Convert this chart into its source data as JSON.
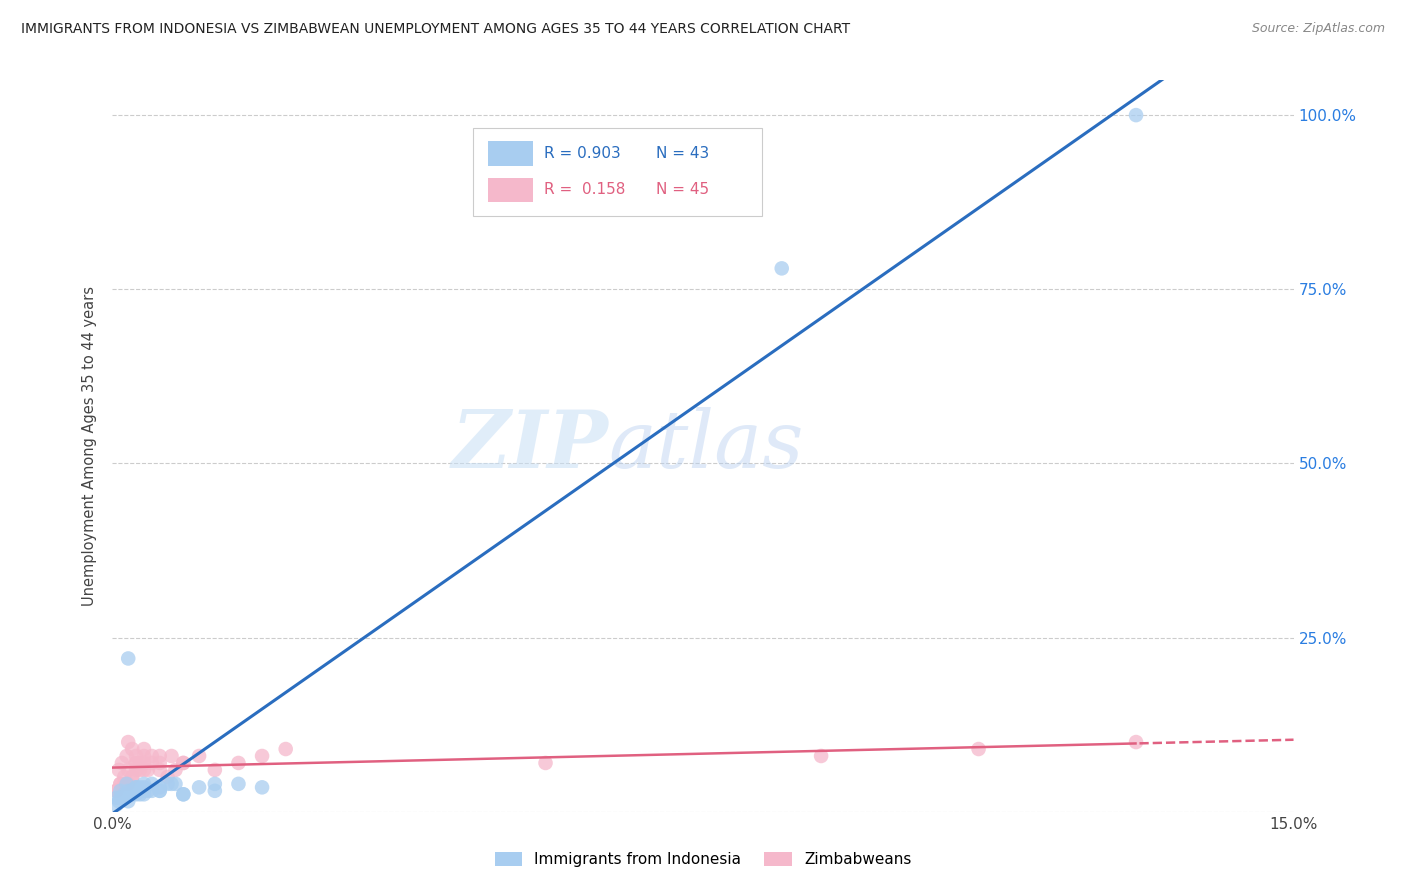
{
  "title": "IMMIGRANTS FROM INDONESIA VS ZIMBABWEAN UNEMPLOYMENT AMONG AGES 35 TO 44 YEARS CORRELATION CHART",
  "source": "Source: ZipAtlas.com",
  "ylabel": "Unemployment Among Ages 35 to 44 years",
  "xlim": [
    0.0,
    0.15
  ],
  "ylim": [
    0.0,
    1.05
  ],
  "color_indonesia": "#a8cdf0",
  "color_zimbabwe": "#f5b8cb",
  "color_line_indonesia": "#2a6dbf",
  "color_line_zimbabwe": "#e06080",
  "watermark_zip": "ZIP",
  "watermark_atlas": "atlas",
  "indonesia_x": [
    0.0005,
    0.001,
    0.0008,
    0.0015,
    0.0012,
    0.002,
    0.0018,
    0.001,
    0.0005,
    0.0025,
    0.003,
    0.0035,
    0.0015,
    0.004,
    0.002,
    0.0025,
    0.003,
    0.0045,
    0.005,
    0.0035,
    0.004,
    0.006,
    0.0075,
    0.009,
    0.0025,
    0.002,
    0.003,
    0.004,
    0.003,
    0.004,
    0.005,
    0.006,
    0.007,
    0.006,
    0.008,
    0.009,
    0.011,
    0.013,
    0.016,
    0.019,
    0.013,
    0.085,
    0.13
  ],
  "indonesia_y": [
    0.02,
    0.03,
    0.015,
    0.025,
    0.02,
    0.03,
    0.04,
    0.02,
    0.01,
    0.025,
    0.03,
    0.025,
    0.02,
    0.035,
    0.22,
    0.03,
    0.035,
    0.03,
    0.04,
    0.035,
    0.04,
    0.03,
    0.04,
    0.025,
    0.03,
    0.015,
    0.025,
    0.03,
    0.035,
    0.025,
    0.03,
    0.035,
    0.04,
    0.03,
    0.04,
    0.025,
    0.035,
    0.03,
    0.04,
    0.035,
    0.04,
    0.78,
    1.0
  ],
  "zimbabwe_x": [
    0.0005,
    0.001,
    0.0008,
    0.0015,
    0.0012,
    0.002,
    0.0018,
    0.001,
    0.0005,
    0.0025,
    0.003,
    0.0035,
    0.0015,
    0.004,
    0.002,
    0.0025,
    0.003,
    0.0045,
    0.005,
    0.0035,
    0.004,
    0.006,
    0.0075,
    0.009,
    0.0025,
    0.002,
    0.003,
    0.004,
    0.003,
    0.004,
    0.005,
    0.006,
    0.007,
    0.006,
    0.008,
    0.009,
    0.011,
    0.013,
    0.016,
    0.019,
    0.022,
    0.055,
    0.09,
    0.11,
    0.13
  ],
  "zimbabwe_y": [
    0.03,
    0.04,
    0.06,
    0.05,
    0.07,
    0.06,
    0.08,
    0.04,
    0.03,
    0.05,
    0.07,
    0.06,
    0.04,
    0.08,
    0.1,
    0.05,
    0.07,
    0.06,
    0.08,
    0.07,
    0.09,
    0.06,
    0.08,
    0.07,
    0.09,
    0.04,
    0.06,
    0.07,
    0.08,
    0.06,
    0.07,
    0.08,
    0.05,
    0.07,
    0.06,
    0.07,
    0.08,
    0.06,
    0.07,
    0.08,
    0.09,
    0.07,
    0.08,
    0.09,
    0.1
  ]
}
